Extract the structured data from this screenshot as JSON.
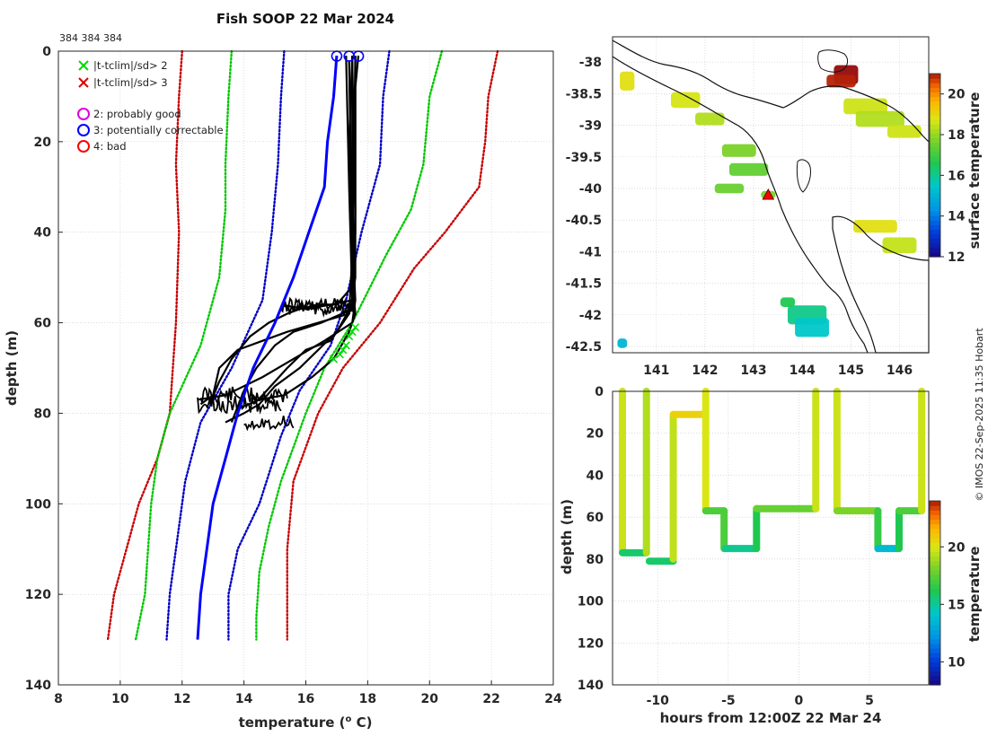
{
  "colors": {
    "clim_sd1": "#0000c8",
    "clim_sd2": "#00c800",
    "clim_sd3": "#c80000",
    "profile_mean": "#0000ff",
    "profile": "#000000",
    "flag_good": "#e000e0",
    "flag_corr": "#0000ff",
    "flag_bad": "#ff0000",
    "cross_sd2": "#00dd00",
    "cross_sd3": "#dd0000"
  },
  "chart_data": [
    {
      "id": "profile",
      "type": "line",
      "title": "Fish SOOP 22 Mar 2024",
      "annotation": "384 384 384",
      "xlabel": "temperature (",
      "xlabel_sup": "o",
      "xlabel_end": " C)",
      "ylabel": "depth (m)",
      "xlim": [
        8,
        24
      ],
      "ylim": [
        140,
        0
      ],
      "xticks": [
        8,
        10,
        12,
        14,
        16,
        18,
        20,
        22,
        24
      ],
      "yticks": [
        0,
        20,
        40,
        60,
        80,
        100,
        120,
        140
      ],
      "legend": {
        "crosses": [
          "|t-tclim|/sd> 2",
          "|t-tclim|/sd> 3"
        ],
        "circles": [
          "2: probably good",
          "3: potentially correctable",
          "4: bad"
        ]
      },
      "climatology": [
        {
          "name": "-3sd",
          "color_key": "clim_sd3",
          "points": [
            [
              12.0,
              0
            ],
            [
              11.9,
              10
            ],
            [
              11.8,
              25
            ],
            [
              11.9,
              40
            ],
            [
              11.8,
              60
            ],
            [
              11.6,
              80
            ],
            [
              11.2,
              90
            ],
            [
              10.6,
              100
            ],
            [
              10.2,
              110
            ],
            [
              9.8,
              120
            ],
            [
              9.6,
              130
            ]
          ]
        },
        {
          "name": "-2sd",
          "color_key": "clim_sd2",
          "points": [
            [
              13.6,
              0
            ],
            [
              13.5,
              10
            ],
            [
              13.4,
              25
            ],
            [
              13.4,
              35
            ],
            [
              13.2,
              50
            ],
            [
              12.6,
              65
            ],
            [
              11.6,
              80
            ],
            [
              11.2,
              90
            ],
            [
              11.0,
              100
            ],
            [
              10.8,
              120
            ],
            [
              10.5,
              130
            ]
          ]
        },
        {
          "name": "-1sd",
          "color_key": "clim_sd1",
          "points": [
            [
              15.3,
              0
            ],
            [
              15.2,
              10
            ],
            [
              15.1,
              25
            ],
            [
              14.9,
              40
            ],
            [
              14.6,
              55
            ],
            [
              13.6,
              70
            ],
            [
              12.6,
              82
            ],
            [
              12.1,
              95
            ],
            [
              11.8,
              110
            ],
            [
              11.6,
              120
            ],
            [
              11.5,
              130
            ]
          ]
        },
        {
          "name": "+1sd",
          "color_key": "clim_sd1",
          "points": [
            [
              18.7,
              0
            ],
            [
              18.5,
              10
            ],
            [
              18.4,
              25
            ],
            [
              17.8,
              40
            ],
            [
              17.3,
              55
            ],
            [
              16.8,
              65
            ],
            [
              15.8,
              75
            ],
            [
              15.2,
              85
            ],
            [
              14.5,
              100
            ],
            [
              13.8,
              110
            ],
            [
              13.5,
              120
            ],
            [
              13.5,
              130
            ]
          ]
        },
        {
          "name": "+2sd",
          "color_key": "clim_sd2",
          "points": [
            [
              20.4,
              0
            ],
            [
              20.0,
              10
            ],
            [
              19.8,
              25
            ],
            [
              19.4,
              35
            ],
            [
              18.6,
              45
            ],
            [
              17.5,
              60
            ],
            [
              16.6,
              70
            ],
            [
              16.0,
              80
            ],
            [
              15.2,
              95
            ],
            [
              14.8,
              105
            ],
            [
              14.5,
              115
            ],
            [
              14.4,
              125
            ],
            [
              14.4,
              130
            ]
          ]
        },
        {
          "name": "+3sd",
          "color_key": "clim_sd3",
          "points": [
            [
              22.2,
              0
            ],
            [
              21.9,
              10
            ],
            [
              21.8,
              20
            ],
            [
              21.6,
              30
            ],
            [
              20.5,
              40
            ],
            [
              19.5,
              48
            ],
            [
              18.4,
              60
            ],
            [
              17.2,
              70
            ],
            [
              16.4,
              80
            ],
            [
              15.6,
              95
            ],
            [
              15.4,
              110
            ],
            [
              15.4,
              120
            ],
            [
              15.4,
              130
            ]
          ]
        }
      ],
      "mean_profile": [
        [
          17.0,
          1
        ],
        [
          16.9,
          10
        ],
        [
          16.7,
          20
        ],
        [
          16.6,
          30
        ],
        [
          16.1,
          40
        ],
        [
          15.6,
          50
        ],
        [
          15.0,
          60
        ],
        [
          14.3,
          70
        ],
        [
          13.8,
          80
        ],
        [
          13.4,
          90
        ],
        [
          13.0,
          100
        ],
        [
          12.8,
          110
        ],
        [
          12.6,
          120
        ],
        [
          12.5,
          130
        ]
      ],
      "flags": [
        {
          "x": 17.0,
          "y": 0.5,
          "flag": 3
        },
        {
          "x": 17.4,
          "y": 0.5,
          "flag": 3
        },
        {
          "x": 17.7,
          "y": 0.5,
          "flag": 3
        }
      ],
      "exceed_sd2": [
        [
          17.6,
          61
        ],
        [
          17.4,
          63
        ],
        [
          17.3,
          65
        ],
        [
          17.1,
          67
        ],
        [
          16.9,
          68
        ],
        [
          17.5,
          62
        ],
        [
          17.2,
          66
        ]
      ]
    },
    {
      "id": "map",
      "type": "heatmap",
      "colorbar_label": "surface temperature",
      "xlim": [
        140.1,
        146.6
      ],
      "ylim": [
        -42.6,
        -37.6
      ],
      "xticks": [
        141,
        142,
        143,
        144,
        145,
        146
      ],
      "yticks": [
        -38,
        -38.5,
        -39,
        -39.5,
        -40,
        -40.5,
        -41,
        -41.5,
        -42,
        -42.5
      ],
      "colorbar_ticks": [
        12,
        14,
        16,
        18,
        20
      ],
      "colorbar_range": [
        12,
        21
      ],
      "marker": {
        "lon": 143.3,
        "lat": -40.1
      },
      "patches": [
        {
          "lon": 144.9,
          "lat": -38.2,
          "temp": 21.0,
          "w": 0.5,
          "h": 0.3
        },
        {
          "lon": 144.8,
          "lat": -38.3,
          "temp": 20.8,
          "w": 0.6,
          "h": 0.2
        },
        {
          "lon": 145.3,
          "lat": -38.7,
          "temp": 18.5,
          "w": 0.9,
          "h": 0.25
        },
        {
          "lon": 145.6,
          "lat": -38.9,
          "temp": 18.2,
          "w": 1.0,
          "h": 0.25
        },
        {
          "lon": 146.1,
          "lat": -39.1,
          "temp": 18.5,
          "w": 0.7,
          "h": 0.2
        },
        {
          "lon": 141.6,
          "lat": -38.6,
          "temp": 18.6,
          "w": 0.6,
          "h": 0.25
        },
        {
          "lon": 142.1,
          "lat": -38.9,
          "temp": 18.2,
          "w": 0.6,
          "h": 0.2
        },
        {
          "lon": 140.4,
          "lat": -38.3,
          "temp": 18.8,
          "w": 0.3,
          "h": 0.3
        },
        {
          "lon": 142.7,
          "lat": -39.4,
          "temp": 17.6,
          "w": 0.7,
          "h": 0.2
        },
        {
          "lon": 142.9,
          "lat": -39.7,
          "temp": 17.3,
          "w": 0.8,
          "h": 0.2
        },
        {
          "lon": 142.5,
          "lat": -40.0,
          "temp": 17.4,
          "w": 0.6,
          "h": 0.15
        },
        {
          "lon": 143.3,
          "lat": -40.1,
          "temp": 17.6,
          "w": 0.3,
          "h": 0.12
        },
        {
          "lon": 145.5,
          "lat": -40.6,
          "temp": 18.8,
          "w": 0.9,
          "h": 0.2
        },
        {
          "lon": 146.0,
          "lat": -40.9,
          "temp": 18.4,
          "w": 0.7,
          "h": 0.25
        },
        {
          "lon": 144.1,
          "lat": -42.0,
          "temp": 16.0,
          "w": 0.8,
          "h": 0.3
        },
        {
          "lon": 144.2,
          "lat": -42.2,
          "temp": 15.4,
          "w": 0.7,
          "h": 0.3
        },
        {
          "lon": 143.7,
          "lat": -41.8,
          "temp": 16.5,
          "w": 0.3,
          "h": 0.15
        },
        {
          "lon": 140.3,
          "lat": -42.45,
          "temp": 15.0,
          "w": 0.2,
          "h": 0.15
        }
      ]
    },
    {
      "id": "timeseries",
      "type": "scatter",
      "xlabel": "hours from 12:00Z 22 Mar 24",
      "ylabel": "depth (m)",
      "colorbar_label": "temperature",
      "xlim": [
        -13.2,
        9.2
      ],
      "ylim": [
        140,
        0
      ],
      "xticks": [
        -10,
        -5,
        0,
        5
      ],
      "yticks": [
        0,
        20,
        40,
        60,
        80,
        100,
        120,
        140
      ],
      "colorbar_ticks": [
        10,
        15,
        20
      ],
      "colorbar_range": [
        8,
        24
      ],
      "segments": [
        {
          "t0": -12.5,
          "t1": -12.5,
          "d0": 0,
          "d1": 76,
          "temp": 19.5
        },
        {
          "t0": -12.5,
          "t1": -10.8,
          "d0": 77,
          "d1": 77,
          "temp": 15.6
        },
        {
          "t0": -10.8,
          "t1": -10.8,
          "d0": 77,
          "d1": 0,
          "temp": 19.0
        },
        {
          "t0": -10.6,
          "t1": -8.9,
          "d0": 81,
          "d1": 81,
          "temp": 15.6
        },
        {
          "t0": -8.9,
          "t1": -8.9,
          "d0": 80,
          "d1": 12,
          "temp": 19.3
        },
        {
          "t0": -8.9,
          "t1": -6.6,
          "d0": 11,
          "d1": 11,
          "temp": 20.5
        },
        {
          "t0": -6.6,
          "t1": -6.6,
          "d0": 0,
          "d1": 56,
          "temp": 19.8
        },
        {
          "t0": -6.6,
          "t1": -5.3,
          "d0": 57,
          "d1": 57,
          "temp": 17.0
        },
        {
          "t0": -5.3,
          "t1": -5.3,
          "d0": 57,
          "d1": 75,
          "temp": 17.0
        },
        {
          "t0": -5.2,
          "t1": -3.0,
          "d0": 75,
          "d1": 75,
          "temp": 15.0
        },
        {
          "t0": -3.0,
          "t1": -3.0,
          "d0": 75,
          "d1": 56,
          "temp": 16.0
        },
        {
          "t0": -3.0,
          "t1": 1.2,
          "d0": 56,
          "d1": 56,
          "temp": 17.5
        },
        {
          "t0": 1.2,
          "t1": 1.2,
          "d0": 56,
          "d1": 0,
          "temp": 19.5
        },
        {
          "t0": 2.7,
          "t1": 2.7,
          "d0": 0,
          "d1": 56,
          "temp": 19.5
        },
        {
          "t0": 2.7,
          "t1": 5.6,
          "d0": 57,
          "d1": 57,
          "temp": 18.0
        },
        {
          "t0": 5.6,
          "t1": 5.6,
          "d0": 57,
          "d1": 75,
          "temp": 16.5
        },
        {
          "t0": 5.6,
          "t1": 7.1,
          "d0": 75,
          "d1": 75,
          "temp": 13.5
        },
        {
          "t0": 7.1,
          "t1": 7.1,
          "d0": 75,
          "d1": 57,
          "temp": 16.0
        },
        {
          "t0": 7.1,
          "t1": 8.7,
          "d0": 57,
          "d1": 57,
          "temp": 17.0
        },
        {
          "t0": 8.7,
          "t1": 8.7,
          "d0": 57,
          "d1": 0,
          "temp": 19.5
        }
      ]
    }
  ],
  "credit": "© IMOS 22-Sep-2025 11:35 Hobart"
}
